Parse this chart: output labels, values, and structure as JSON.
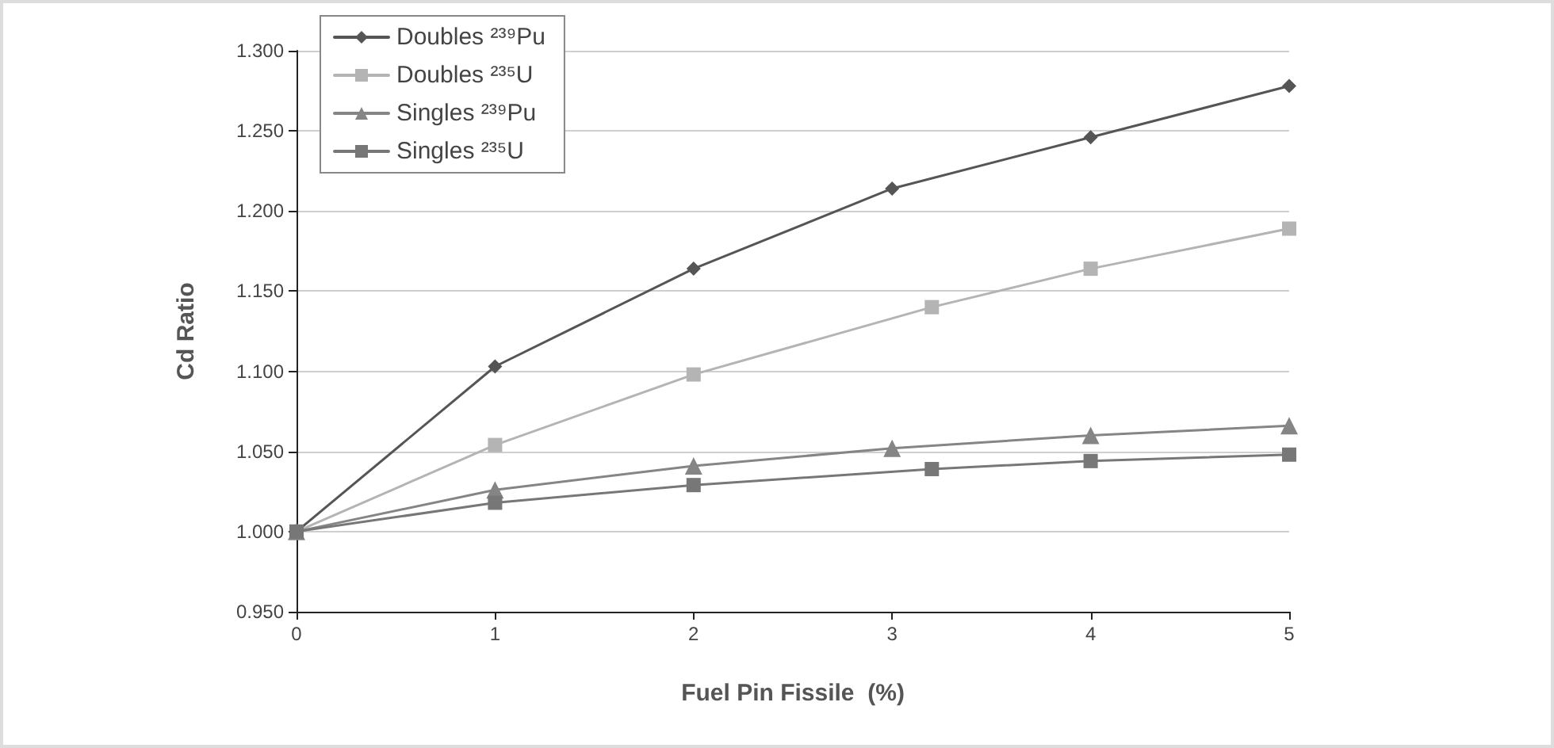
{
  "chart_data": {
    "type": "line",
    "xlabel": "Fuel Pin Fissile  (%)",
    "ylabel": "Cd Ratio",
    "xlim": [
      0,
      5
    ],
    "xticks": [
      0,
      1,
      2,
      3,
      4,
      5
    ],
    "ylim": [
      0.95,
      1.3
    ],
    "yticks": [
      {
        "value": 0.95,
        "label": "0.950"
      },
      {
        "value": 1.0,
        "label": "1.000"
      },
      {
        "value": 1.05,
        "label": "1.050"
      },
      {
        "value": 1.1,
        "label": "1.100"
      },
      {
        "value": 1.15,
        "label": "1.150"
      },
      {
        "value": 1.2,
        "label": "1.200"
      },
      {
        "value": 1.25,
        "label": "1.250"
      },
      {
        "value": 1.3,
        "label": "1.300"
      }
    ],
    "grid": "y",
    "legend": "top left",
    "line_style": "solid",
    "series": [
      {
        "name": "Doubles ²³⁹Pu",
        "color": "#555555",
        "marker": "diamond",
        "x": [
          0,
          1,
          2,
          3,
          4,
          5
        ],
        "values": [
          1.0,
          1.103,
          1.164,
          1.214,
          1.246,
          1.278
        ]
      },
      {
        "name": "Doubles ²³⁵U",
        "color": "#b4b4b4",
        "marker": "square",
        "x": [
          0,
          1,
          2,
          3.2,
          4,
          5
        ],
        "values": [
          1.0,
          1.054,
          1.098,
          1.14,
          1.164,
          1.189
        ]
      },
      {
        "name": "Singles ²³⁹Pu",
        "color": "#858585",
        "marker": "triangle",
        "x": [
          0,
          1,
          2,
          3,
          4,
          5
        ],
        "values": [
          1.0,
          1.026,
          1.041,
          1.052,
          1.06,
          1.066
        ]
      },
      {
        "name": "Singles ²³⁵U",
        "color": "#777777",
        "marker": "square",
        "x": [
          0,
          1,
          2,
          3.2,
          4,
          5
        ],
        "values": [
          1.0,
          1.018,
          1.029,
          1.039,
          1.044,
          1.048
        ]
      }
    ]
  }
}
